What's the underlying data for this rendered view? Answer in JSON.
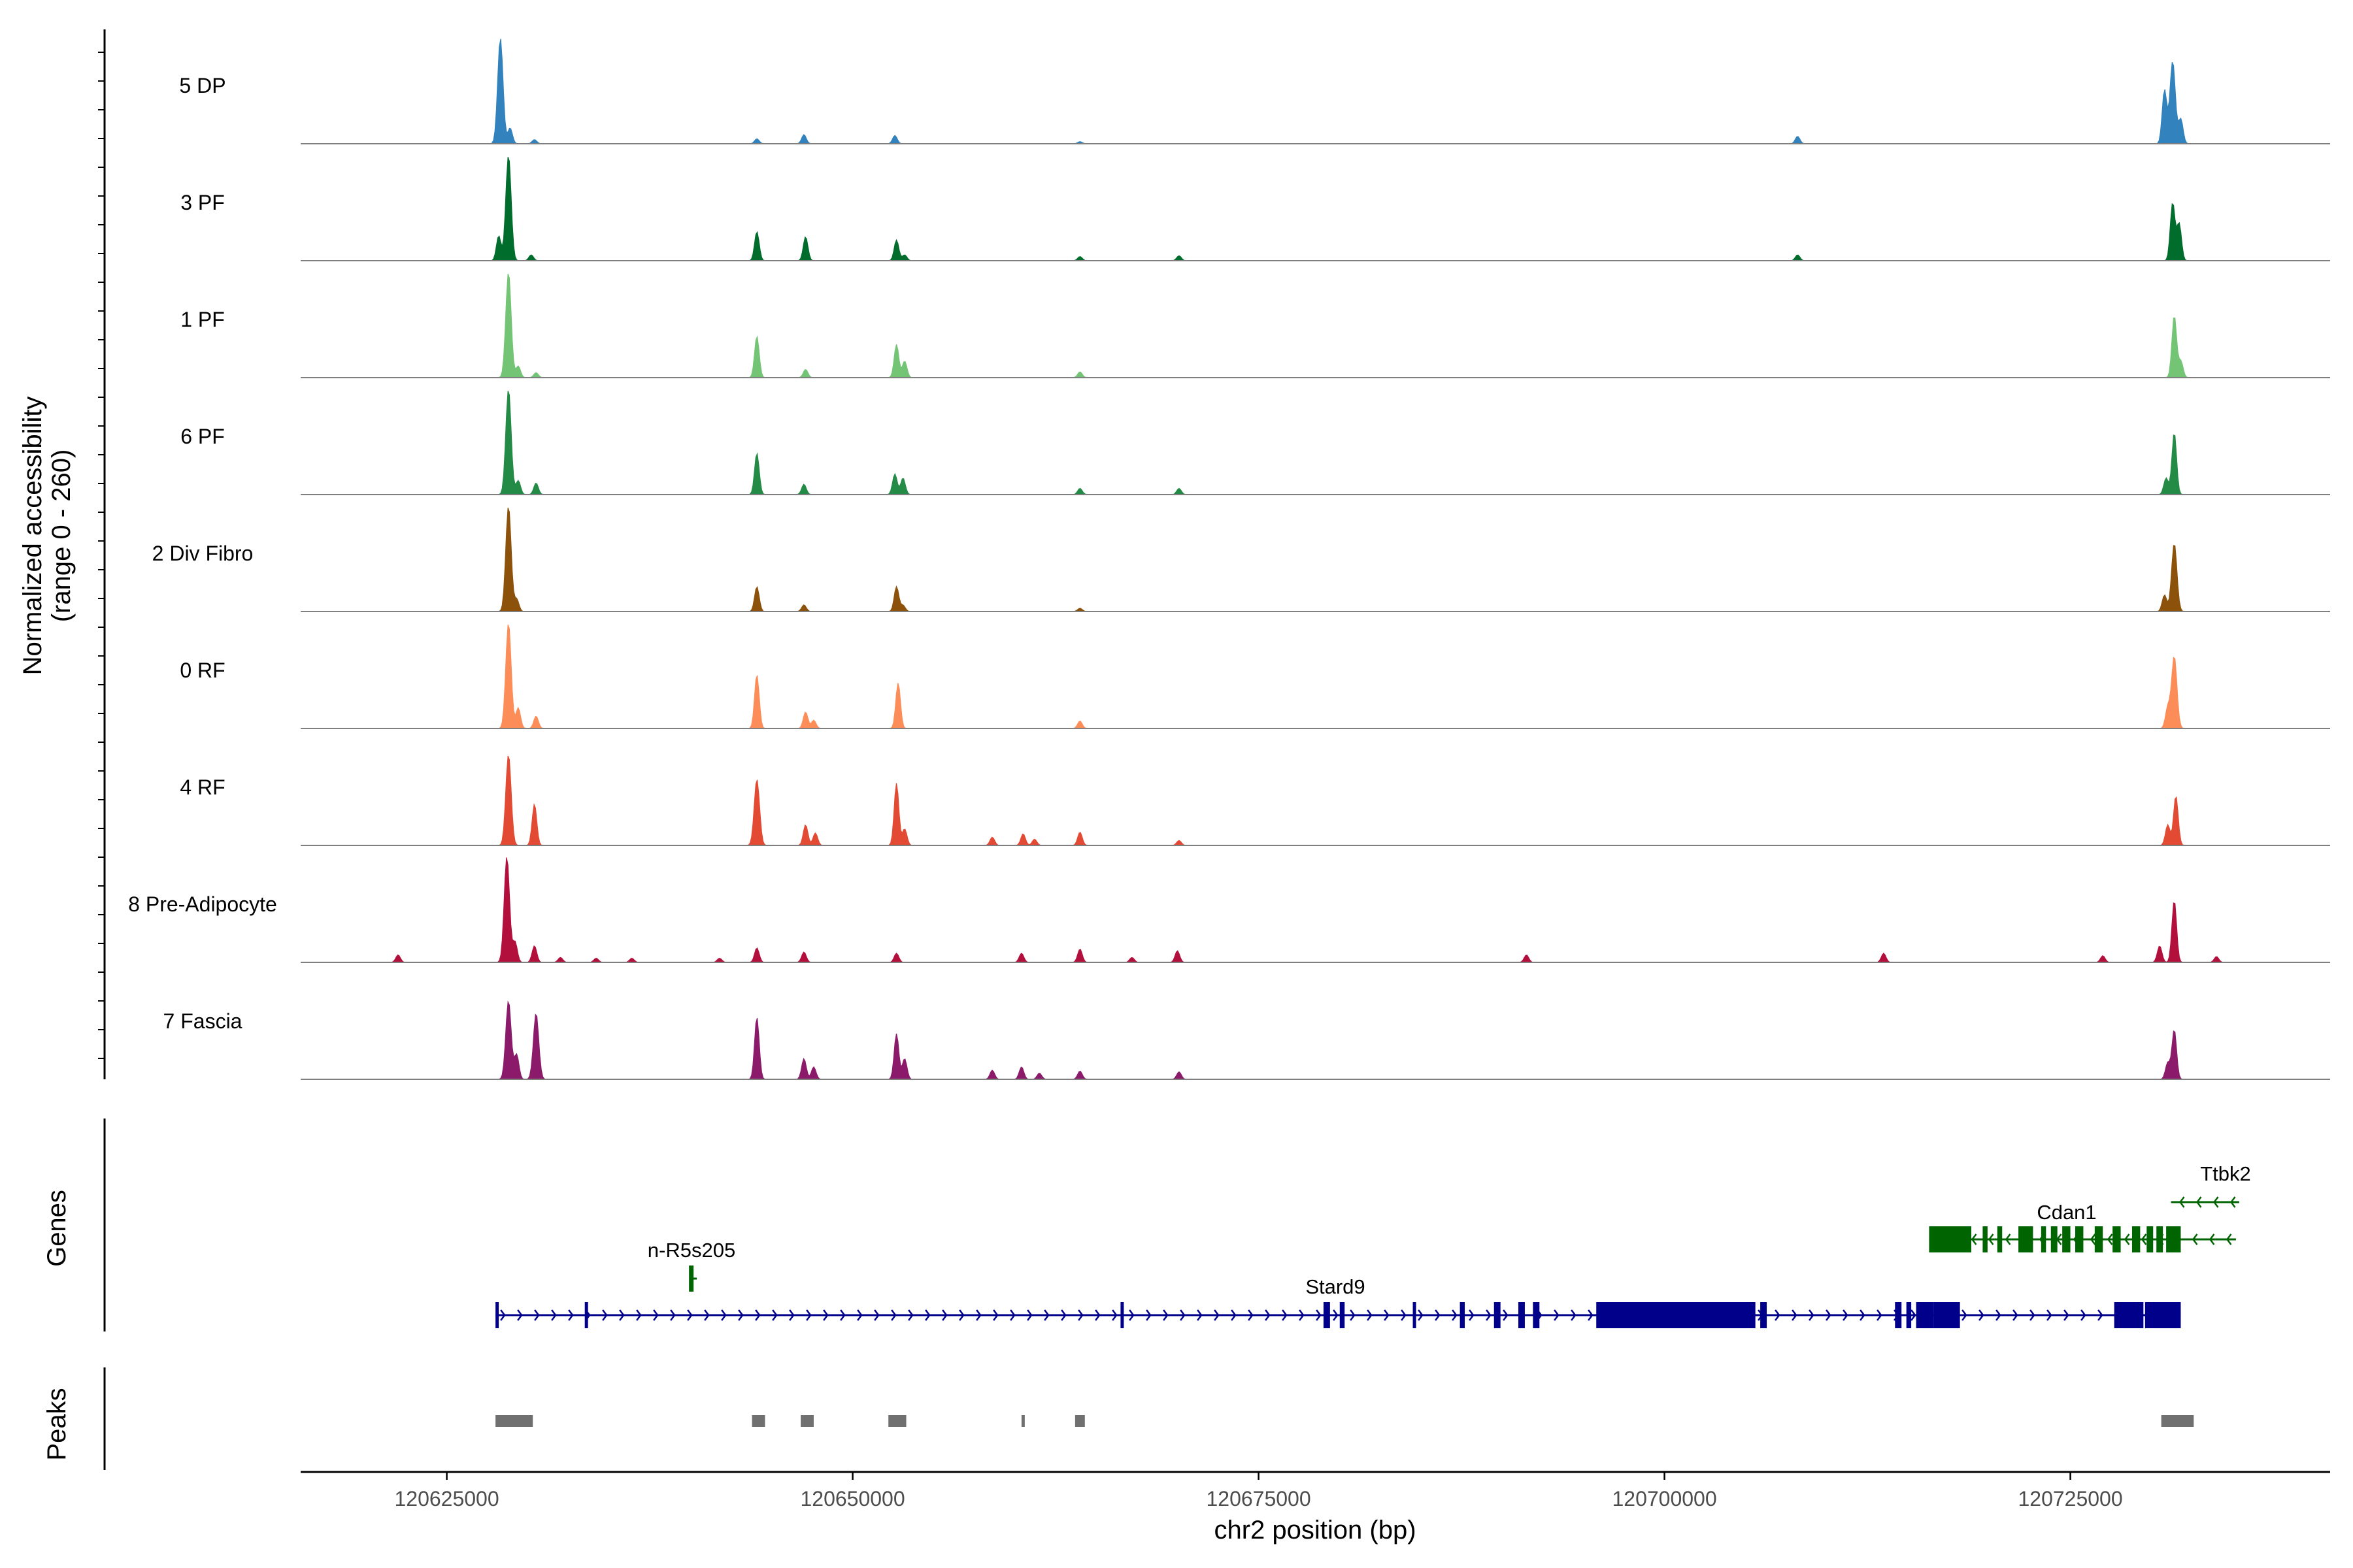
{
  "chart_data": {
    "type": "area",
    "title": "",
    "region": "chr2",
    "xlabel": "chr2 position (bp)",
    "ylabel": "Normalized accessibility",
    "ylabel_range": "(range 0 - 260)",
    "xlim": [
      120616000,
      120741000
    ],
    "ylim": [
      0,
      260
    ],
    "x_ticks": [
      120625000,
      120650000,
      120675000,
      120700000,
      120725000
    ],
    "x_tick_labels": [
      "120625000",
      "120650000",
      "120675000",
      "120700000",
      "120725000"
    ],
    "panel_titles": {
      "genes": "Genes",
      "peaks": "Peaks"
    },
    "series": [
      {
        "name": "5 DP",
        "color": "#3182BD",
        "peaks": [
          [
            120628300,
            255
          ],
          [
            120628900,
            38
          ],
          [
            120630400,
            10
          ],
          [
            120644100,
            12
          ],
          [
            120647000,
            22
          ],
          [
            120652600,
            20
          ],
          [
            120664000,
            5
          ],
          [
            120708200,
            18
          ],
          [
            120730800,
            130
          ],
          [
            120731300,
            200
          ],
          [
            120731800,
            60
          ]
        ]
      },
      {
        "name": "3 PF",
        "color": "#006D2C",
        "peaks": [
          [
            120628200,
            60
          ],
          [
            120628800,
            255
          ],
          [
            120630200,
            14
          ],
          [
            120644100,
            70
          ],
          [
            120647100,
            58
          ],
          [
            120652700,
            50
          ],
          [
            120653200,
            14
          ],
          [
            120664000,
            10
          ],
          [
            120670100,
            12
          ],
          [
            120708200,
            14
          ],
          [
            120731300,
            140
          ],
          [
            120731700,
            90
          ]
        ]
      },
      {
        "name": "1 PF",
        "color": "#74C476",
        "peaks": [
          [
            120628800,
            255
          ],
          [
            120629400,
            28
          ],
          [
            120630500,
            12
          ],
          [
            120644100,
            100
          ],
          [
            120647100,
            20
          ],
          [
            120652700,
            80
          ],
          [
            120653200,
            40
          ],
          [
            120664000,
            14
          ],
          [
            120731400,
            150
          ],
          [
            120731800,
            40
          ]
        ]
      },
      {
        "name": "6 PF",
        "color": "#238B45",
        "peaks": [
          [
            120628800,
            255
          ],
          [
            120629400,
            34
          ],
          [
            120630500,
            28
          ],
          [
            120644100,
            100
          ],
          [
            120647000,
            25
          ],
          [
            120652600,
            50
          ],
          [
            120653100,
            40
          ],
          [
            120664000,
            15
          ],
          [
            120670100,
            15
          ],
          [
            120730900,
            40
          ],
          [
            120731400,
            150
          ]
        ]
      },
      {
        "name": "2 Div Fibro",
        "color": "#8C510A",
        "peaks": [
          [
            120628800,
            255
          ],
          [
            120629300,
            30
          ],
          [
            120644100,
            60
          ],
          [
            120647000,
            16
          ],
          [
            120652700,
            60
          ],
          [
            120653100,
            15
          ],
          [
            120664000,
            8
          ],
          [
            120730800,
            40
          ],
          [
            120731400,
            165
          ]
        ]
      },
      {
        "name": "0 RF",
        "color": "#FC8D59",
        "peaks": [
          [
            120628800,
            255
          ],
          [
            120629400,
            50
          ],
          [
            120630500,
            30
          ],
          [
            120644100,
            130
          ],
          [
            120647100,
            40
          ],
          [
            120647600,
            20
          ],
          [
            120652800,
            110
          ],
          [
            120664000,
            18
          ],
          [
            120731400,
            175
          ],
          [
            120731000,
            50
          ]
        ]
      },
      {
        "name": "4 RF",
        "color": "#E34A33",
        "peaks": [
          [
            120628800,
            220
          ],
          [
            120630400,
            100
          ],
          [
            120644100,
            160
          ],
          [
            120647100,
            50
          ],
          [
            120647700,
            30
          ],
          [
            120652700,
            150
          ],
          [
            120653200,
            40
          ],
          [
            120658600,
            20
          ],
          [
            120660500,
            28
          ],
          [
            120661200,
            15
          ],
          [
            120664000,
            32
          ],
          [
            120670100,
            12
          ],
          [
            120731000,
            50
          ],
          [
            120731500,
            120
          ]
        ]
      },
      {
        "name": "8 Pre-Adipocyte",
        "color": "#B30F3C",
        "peaks": [
          [
            120622000,
            18
          ],
          [
            120628700,
            255
          ],
          [
            120629200,
            50
          ],
          [
            120630400,
            40
          ],
          [
            120632000,
            12
          ],
          [
            120634200,
            10
          ],
          [
            120636400,
            10
          ],
          [
            120641800,
            10
          ],
          [
            120644100,
            35
          ],
          [
            120647000,
            25
          ],
          [
            120652700,
            22
          ],
          [
            120660400,
            22
          ],
          [
            120664000,
            32
          ],
          [
            120667200,
            12
          ],
          [
            120670000,
            28
          ],
          [
            120691500,
            18
          ],
          [
            120713500,
            22
          ],
          [
            120727000,
            16
          ],
          [
            120730500,
            40
          ],
          [
            120731400,
            150
          ],
          [
            120734000,
            14
          ]
        ]
      },
      {
        "name": "7 Fascia",
        "color": "#8B1A6B",
        "peaks": [
          [
            120628800,
            190
          ],
          [
            120629300,
            60
          ],
          [
            120630500,
            160
          ],
          [
            120644100,
            150
          ],
          [
            120647000,
            50
          ],
          [
            120647600,
            30
          ],
          [
            120652700,
            110
          ],
          [
            120653200,
            50
          ],
          [
            120658600,
            22
          ],
          [
            120660400,
            30
          ],
          [
            120661500,
            15
          ],
          [
            120664000,
            20
          ],
          [
            120670100,
            18
          ],
          [
            120731000,
            40
          ],
          [
            120731400,
            120
          ]
        ]
      }
    ],
    "genes": [
      {
        "name": "Stard9",
        "strand": "+",
        "color": "#00008B",
        "start": 120628000,
        "end": 120731800,
        "row": 2,
        "exons": [
          [
            120628000,
            120628200
          ],
          [
            120633500,
            120633700
          ],
          [
            120666500,
            120666700
          ],
          [
            120679000,
            120679400
          ],
          [
            120680000,
            120680300
          ],
          [
            120684500,
            120684700
          ],
          [
            120687400,
            120687700
          ],
          [
            120689500,
            120689900
          ],
          [
            120691000,
            120691400
          ],
          [
            120691900,
            120692300
          ],
          [
            120695800,
            120705600
          ],
          [
            120705900,
            120706300
          ],
          [
            120714200,
            120714600
          ],
          [
            120714900,
            120715200
          ],
          [
            120715500,
            120716600
          ],
          [
            120716600,
            120718200
          ],
          [
            120727700,
            120729500
          ],
          [
            120729600,
            120731800
          ]
        ]
      },
      {
        "name": "n-R5s205",
        "strand": "-",
        "color": "#006400",
        "start": 120640000,
        "end": 120640400,
        "row": 1,
        "exons": [
          [
            120640000,
            120640200
          ]
        ]
      },
      {
        "name": "Cdan1",
        "strand": "-",
        "color": "#006400",
        "start": 120716300,
        "end": 120735200,
        "row": 1,
        "exons": [
          [
            120716300,
            120718900
          ],
          [
            120719600,
            120719900
          ],
          [
            120720500,
            120720800
          ],
          [
            120721800,
            120722700
          ],
          [
            120723200,
            120723500
          ],
          [
            120723800,
            120724200
          ],
          [
            120724500,
            120725000
          ],
          [
            120725300,
            120725800
          ],
          [
            120726500,
            120727000
          ],
          [
            120727600,
            120728100
          ],
          [
            120728800,
            120729300
          ],
          [
            120729700,
            120730100
          ],
          [
            120730300,
            120730700
          ],
          [
            120730900,
            120731800
          ]
        ]
      },
      {
        "name": "Ttbk2",
        "strand": "-",
        "color": "#006400",
        "start": 120731200,
        "end": 120735400,
        "row": 0,
        "exons": []
      }
    ],
    "peak_regions": [
      [
        120628000,
        120630300
      ],
      [
        120643800,
        120644600
      ],
      [
        120646800,
        120647600
      ],
      [
        120652200,
        120653300
      ],
      [
        120660400,
        120660600
      ],
      [
        120663700,
        120664300
      ],
      [
        120730600,
        120732600
      ]
    ]
  }
}
